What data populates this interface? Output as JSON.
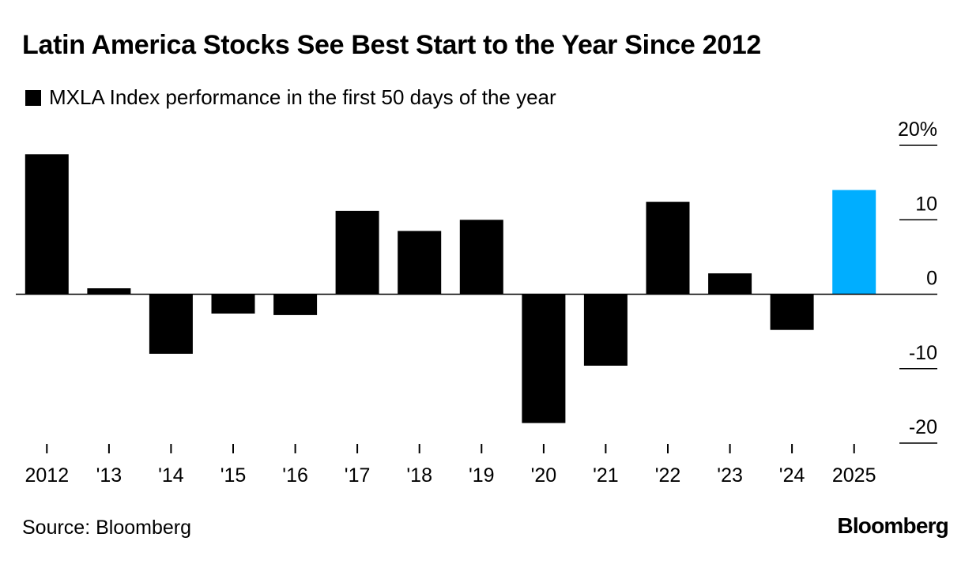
{
  "chart_data": {
    "type": "bar",
    "title": "Latin America Stocks See Best Start to the Year Since 2012",
    "legend": [
      {
        "label": "MXLA Index performance in the first 50 days of the year",
        "color": "#000000"
      }
    ],
    "categories": [
      "2012",
      "'13",
      "'14",
      "'15",
      "'16",
      "'17",
      "'18",
      "'19",
      "'20",
      "'21",
      "'22",
      "'23",
      "'24",
      "2025"
    ],
    "values": [
      18.8,
      0.8,
      -8.0,
      -2.6,
      -2.8,
      11.2,
      8.5,
      10.0,
      -17.3,
      -9.6,
      12.4,
      2.8,
      -4.8,
      14.0
    ],
    "colors": [
      "#000000",
      "#000000",
      "#000000",
      "#000000",
      "#000000",
      "#000000",
      "#000000",
      "#000000",
      "#000000",
      "#000000",
      "#000000",
      "#000000",
      "#000000",
      "#00aeff"
    ],
    "ylim": [
      -20,
      20
    ],
    "yticks": [
      20,
      10,
      0,
      -10,
      -20
    ],
    "ytick_labels": [
      "20%",
      "10",
      "0",
      "-10",
      "-20"
    ],
    "xlabel": "",
    "ylabel": "",
    "y_axis_position": "right",
    "source": "Source: Bloomberg",
    "brand": "Bloomberg"
  }
}
